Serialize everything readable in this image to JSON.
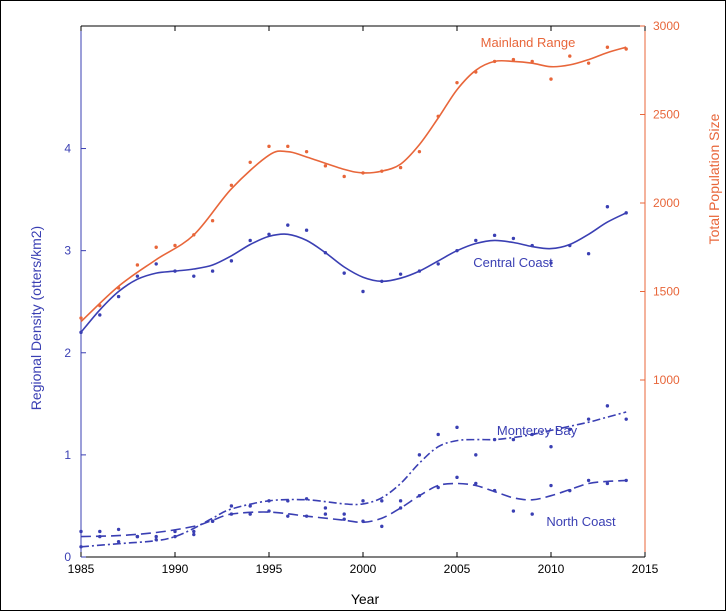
{
  "chart_data": {
    "type": "line",
    "xlabel": "Year",
    "ylabel_left": "Regional Density (otters/km2)",
    "ylabel_right": "Total Population Size",
    "xlim": [
      1985,
      2015
    ],
    "ylim_left": [
      0,
      5.2
    ],
    "ylim_right": [
      0,
      3000
    ],
    "x_ticks": [
      1985,
      1990,
      1995,
      2000,
      2005,
      2010,
      2015
    ],
    "y_ticks_left": [
      0,
      1,
      2,
      3,
      4
    ],
    "y_ticks_right": [
      1000,
      1500,
      2000,
      2500,
      3000
    ],
    "colors": {
      "left_axis": "#3a3fb3",
      "right_axis": "#e8663a",
      "frame": "#000000"
    },
    "series": [
      {
        "name": "Mainland Range",
        "axis": "right",
        "color": "#e8663a",
        "dash": "",
        "points": [
          [
            1985,
            1350
          ],
          [
            1986,
            1420
          ],
          [
            1987,
            1520
          ],
          [
            1988,
            1650
          ],
          [
            1989,
            1750
          ],
          [
            1990,
            1760
          ],
          [
            1991,
            1820
          ],
          [
            1992,
            1900
          ],
          [
            1993,
            2100
          ],
          [
            1994,
            2230
          ],
          [
            1995,
            2320
          ],
          [
            1996,
            2320
          ],
          [
            1997,
            2290
          ],
          [
            1998,
            2210
          ],
          [
            1999,
            2150
          ],
          [
            2000,
            2170
          ],
          [
            2001,
            2180
          ],
          [
            2002,
            2200
          ],
          [
            2003,
            2290
          ],
          [
            2004,
            2490
          ],
          [
            2005,
            2680
          ],
          [
            2006,
            2740
          ],
          [
            2007,
            2800
          ],
          [
            2008,
            2810
          ],
          [
            2009,
            2800
          ],
          [
            2010,
            2700
          ],
          [
            2011,
            2830
          ],
          [
            2012,
            2790
          ],
          [
            2013,
            2880
          ],
          [
            2014,
            2870
          ]
        ],
        "curve": [
          [
            1985,
            1330
          ],
          [
            1987,
            1530
          ],
          [
            1989,
            1680
          ],
          [
            1991,
            1820
          ],
          [
            1993,
            2080
          ],
          [
            1995,
            2270
          ],
          [
            1996,
            2290
          ],
          [
            1997,
            2260
          ],
          [
            1999,
            2190
          ],
          [
            2000,
            2170
          ],
          [
            2001,
            2180
          ],
          [
            2002,
            2220
          ],
          [
            2003,
            2330
          ],
          [
            2004,
            2480
          ],
          [
            2005,
            2640
          ],
          [
            2006,
            2750
          ],
          [
            2007,
            2800
          ],
          [
            2008,
            2800
          ],
          [
            2009,
            2790
          ],
          [
            2010,
            2770
          ],
          [
            2011,
            2780
          ],
          [
            2012,
            2810
          ],
          [
            2013,
            2850
          ],
          [
            2014,
            2880
          ]
        ]
      },
      {
        "name": "Central Coast",
        "axis": "left",
        "color": "#3a3fb3",
        "dash": "",
        "points": [
          [
            1985,
            2.2
          ],
          [
            1986,
            2.37
          ],
          [
            1987,
            2.55
          ],
          [
            1988,
            2.75
          ],
          [
            1989,
            2.87
          ],
          [
            1990,
            2.8
          ],
          [
            1991,
            2.75
          ],
          [
            1992,
            2.8
          ],
          [
            1993,
            2.9
          ],
          [
            1994,
            3.1
          ],
          [
            1995,
            3.16
          ],
          [
            1996,
            3.25
          ],
          [
            1997,
            3.2
          ],
          [
            1998,
            2.98
          ],
          [
            1999,
            2.78
          ],
          [
            2000,
            2.6
          ],
          [
            2001,
            2.7
          ],
          [
            2002,
            2.77
          ],
          [
            2003,
            2.8
          ],
          [
            2004,
            2.87
          ],
          [
            2005,
            3.0
          ],
          [
            2006,
            3.1
          ],
          [
            2007,
            3.15
          ],
          [
            2008,
            3.12
          ],
          [
            2009,
            3.05
          ],
          [
            2010,
            2.88
          ],
          [
            2011,
            3.05
          ],
          [
            2012,
            2.97
          ],
          [
            2013,
            3.43
          ],
          [
            2014,
            3.37
          ]
        ],
        "curve": [
          [
            1985,
            2.2
          ],
          [
            1986,
            2.42
          ],
          [
            1987,
            2.6
          ],
          [
            1988,
            2.72
          ],
          [
            1989,
            2.78
          ],
          [
            1990,
            2.8
          ],
          [
            1991,
            2.82
          ],
          [
            1992,
            2.86
          ],
          [
            1993,
            2.95
          ],
          [
            1994,
            3.06
          ],
          [
            1995,
            3.14
          ],
          [
            1996,
            3.16
          ],
          [
            1997,
            3.1
          ],
          [
            1998,
            2.98
          ],
          [
            1999,
            2.84
          ],
          [
            2000,
            2.74
          ],
          [
            2001,
            2.7
          ],
          [
            2002,
            2.73
          ],
          [
            2003,
            2.8
          ],
          [
            2004,
            2.9
          ],
          [
            2005,
            3.0
          ],
          [
            2006,
            3.07
          ],
          [
            2007,
            3.1
          ],
          [
            2008,
            3.08
          ],
          [
            2009,
            3.04
          ],
          [
            2010,
            3.02
          ],
          [
            2011,
            3.06
          ],
          [
            2012,
            3.16
          ],
          [
            2013,
            3.28
          ],
          [
            2014,
            3.37
          ]
        ]
      },
      {
        "name": "Monterey Bay",
        "axis": "left",
        "color": "#3a3fb3",
        "dash": "8,3,2,3",
        "points": [
          [
            1985,
            0.1
          ],
          [
            1986,
            0.25
          ],
          [
            1987,
            0.15
          ],
          [
            1988,
            0.2
          ],
          [
            1989,
            0.17
          ],
          [
            1990,
            0.2
          ],
          [
            1991,
            0.22
          ],
          [
            1992,
            0.35
          ],
          [
            1993,
            0.5
          ],
          [
            1994,
            0.5
          ],
          [
            1995,
            0.55
          ],
          [
            1996,
            0.55
          ],
          [
            1997,
            0.57
          ],
          [
            1998,
            0.48
          ],
          [
            1999,
            0.42
          ],
          [
            2000,
            0.55
          ],
          [
            2001,
            0.55
          ],
          [
            2002,
            0.55
          ],
          [
            2003,
            1.0
          ],
          [
            2004,
            1.2
          ],
          [
            2005,
            1.27
          ],
          [
            2006,
            1.0
          ],
          [
            2007,
            1.15
          ],
          [
            2008,
            1.15
          ],
          [
            2009,
            1.2
          ],
          [
            2010,
            1.08
          ],
          [
            2011,
            1.25
          ],
          [
            2012,
            1.35
          ],
          [
            2013,
            1.48
          ],
          [
            2014,
            1.35
          ]
        ],
        "curve": [
          [
            1985,
            0.1
          ],
          [
            1987,
            0.13
          ],
          [
            1989,
            0.16
          ],
          [
            1990,
            0.2
          ],
          [
            1991,
            0.28
          ],
          [
            1992,
            0.38
          ],
          [
            1993,
            0.47
          ],
          [
            1995,
            0.55
          ],
          [
            1997,
            0.56
          ],
          [
            1999,
            0.52
          ],
          [
            2000,
            0.52
          ],
          [
            2001,
            0.58
          ],
          [
            2002,
            0.72
          ],
          [
            2003,
            0.92
          ],
          [
            2004,
            1.08
          ],
          [
            2005,
            1.14
          ],
          [
            2006,
            1.15
          ],
          [
            2007,
            1.15
          ],
          [
            2008,
            1.17
          ],
          [
            2009,
            1.2
          ],
          [
            2010,
            1.24
          ],
          [
            2011,
            1.28
          ],
          [
            2012,
            1.32
          ],
          [
            2013,
            1.37
          ],
          [
            2014,
            1.42
          ]
        ]
      },
      {
        "name": "North Coast",
        "axis": "left",
        "color": "#3a3fb3",
        "dash": "10,5",
        "points": [
          [
            1985,
            0.25
          ],
          [
            1986,
            0.2
          ],
          [
            1987,
            0.27
          ],
          [
            1988,
            0.2
          ],
          [
            1989,
            0.2
          ],
          [
            1990,
            0.25
          ],
          [
            1991,
            0.25
          ],
          [
            1992,
            0.35
          ],
          [
            1993,
            0.42
          ],
          [
            1994,
            0.42
          ],
          [
            1995,
            0.45
          ],
          [
            1996,
            0.4
          ],
          [
            1997,
            0.4
          ],
          [
            1998,
            0.42
          ],
          [
            1999,
            0.37
          ],
          [
            2000,
            0.35
          ],
          [
            2001,
            0.3
          ],
          [
            2002,
            0.48
          ],
          [
            2003,
            0.6
          ],
          [
            2004,
            0.68
          ],
          [
            2005,
            0.78
          ],
          [
            2006,
            0.72
          ],
          [
            2007,
            0.65
          ],
          [
            2008,
            0.45
          ],
          [
            2009,
            0.42
          ],
          [
            2010,
            0.7
          ],
          [
            2011,
            0.65
          ],
          [
            2012,
            0.75
          ],
          [
            2013,
            0.72
          ],
          [
            2014,
            0.75
          ]
        ],
        "curve": [
          [
            1985,
            0.2
          ],
          [
            1987,
            0.21
          ],
          [
            1989,
            0.24
          ],
          [
            1991,
            0.3
          ],
          [
            1992,
            0.36
          ],
          [
            1993,
            0.42
          ],
          [
            1995,
            0.44
          ],
          [
            1997,
            0.4
          ],
          [
            1999,
            0.36
          ],
          [
            2000,
            0.34
          ],
          [
            2001,
            0.38
          ],
          [
            2002,
            0.48
          ],
          [
            2003,
            0.6
          ],
          [
            2004,
            0.7
          ],
          [
            2005,
            0.72
          ],
          [
            2006,
            0.7
          ],
          [
            2007,
            0.64
          ],
          [
            2008,
            0.58
          ],
          [
            2009,
            0.56
          ],
          [
            2010,
            0.6
          ],
          [
            2011,
            0.66
          ],
          [
            2012,
            0.72
          ],
          [
            2013,
            0.74
          ],
          [
            2014,
            0.75
          ]
        ]
      }
    ],
    "labels": {
      "mainland": "Mainland Range",
      "central": "Central Coast",
      "monterey": "Monterey Bay",
      "north": "North Coast"
    }
  }
}
